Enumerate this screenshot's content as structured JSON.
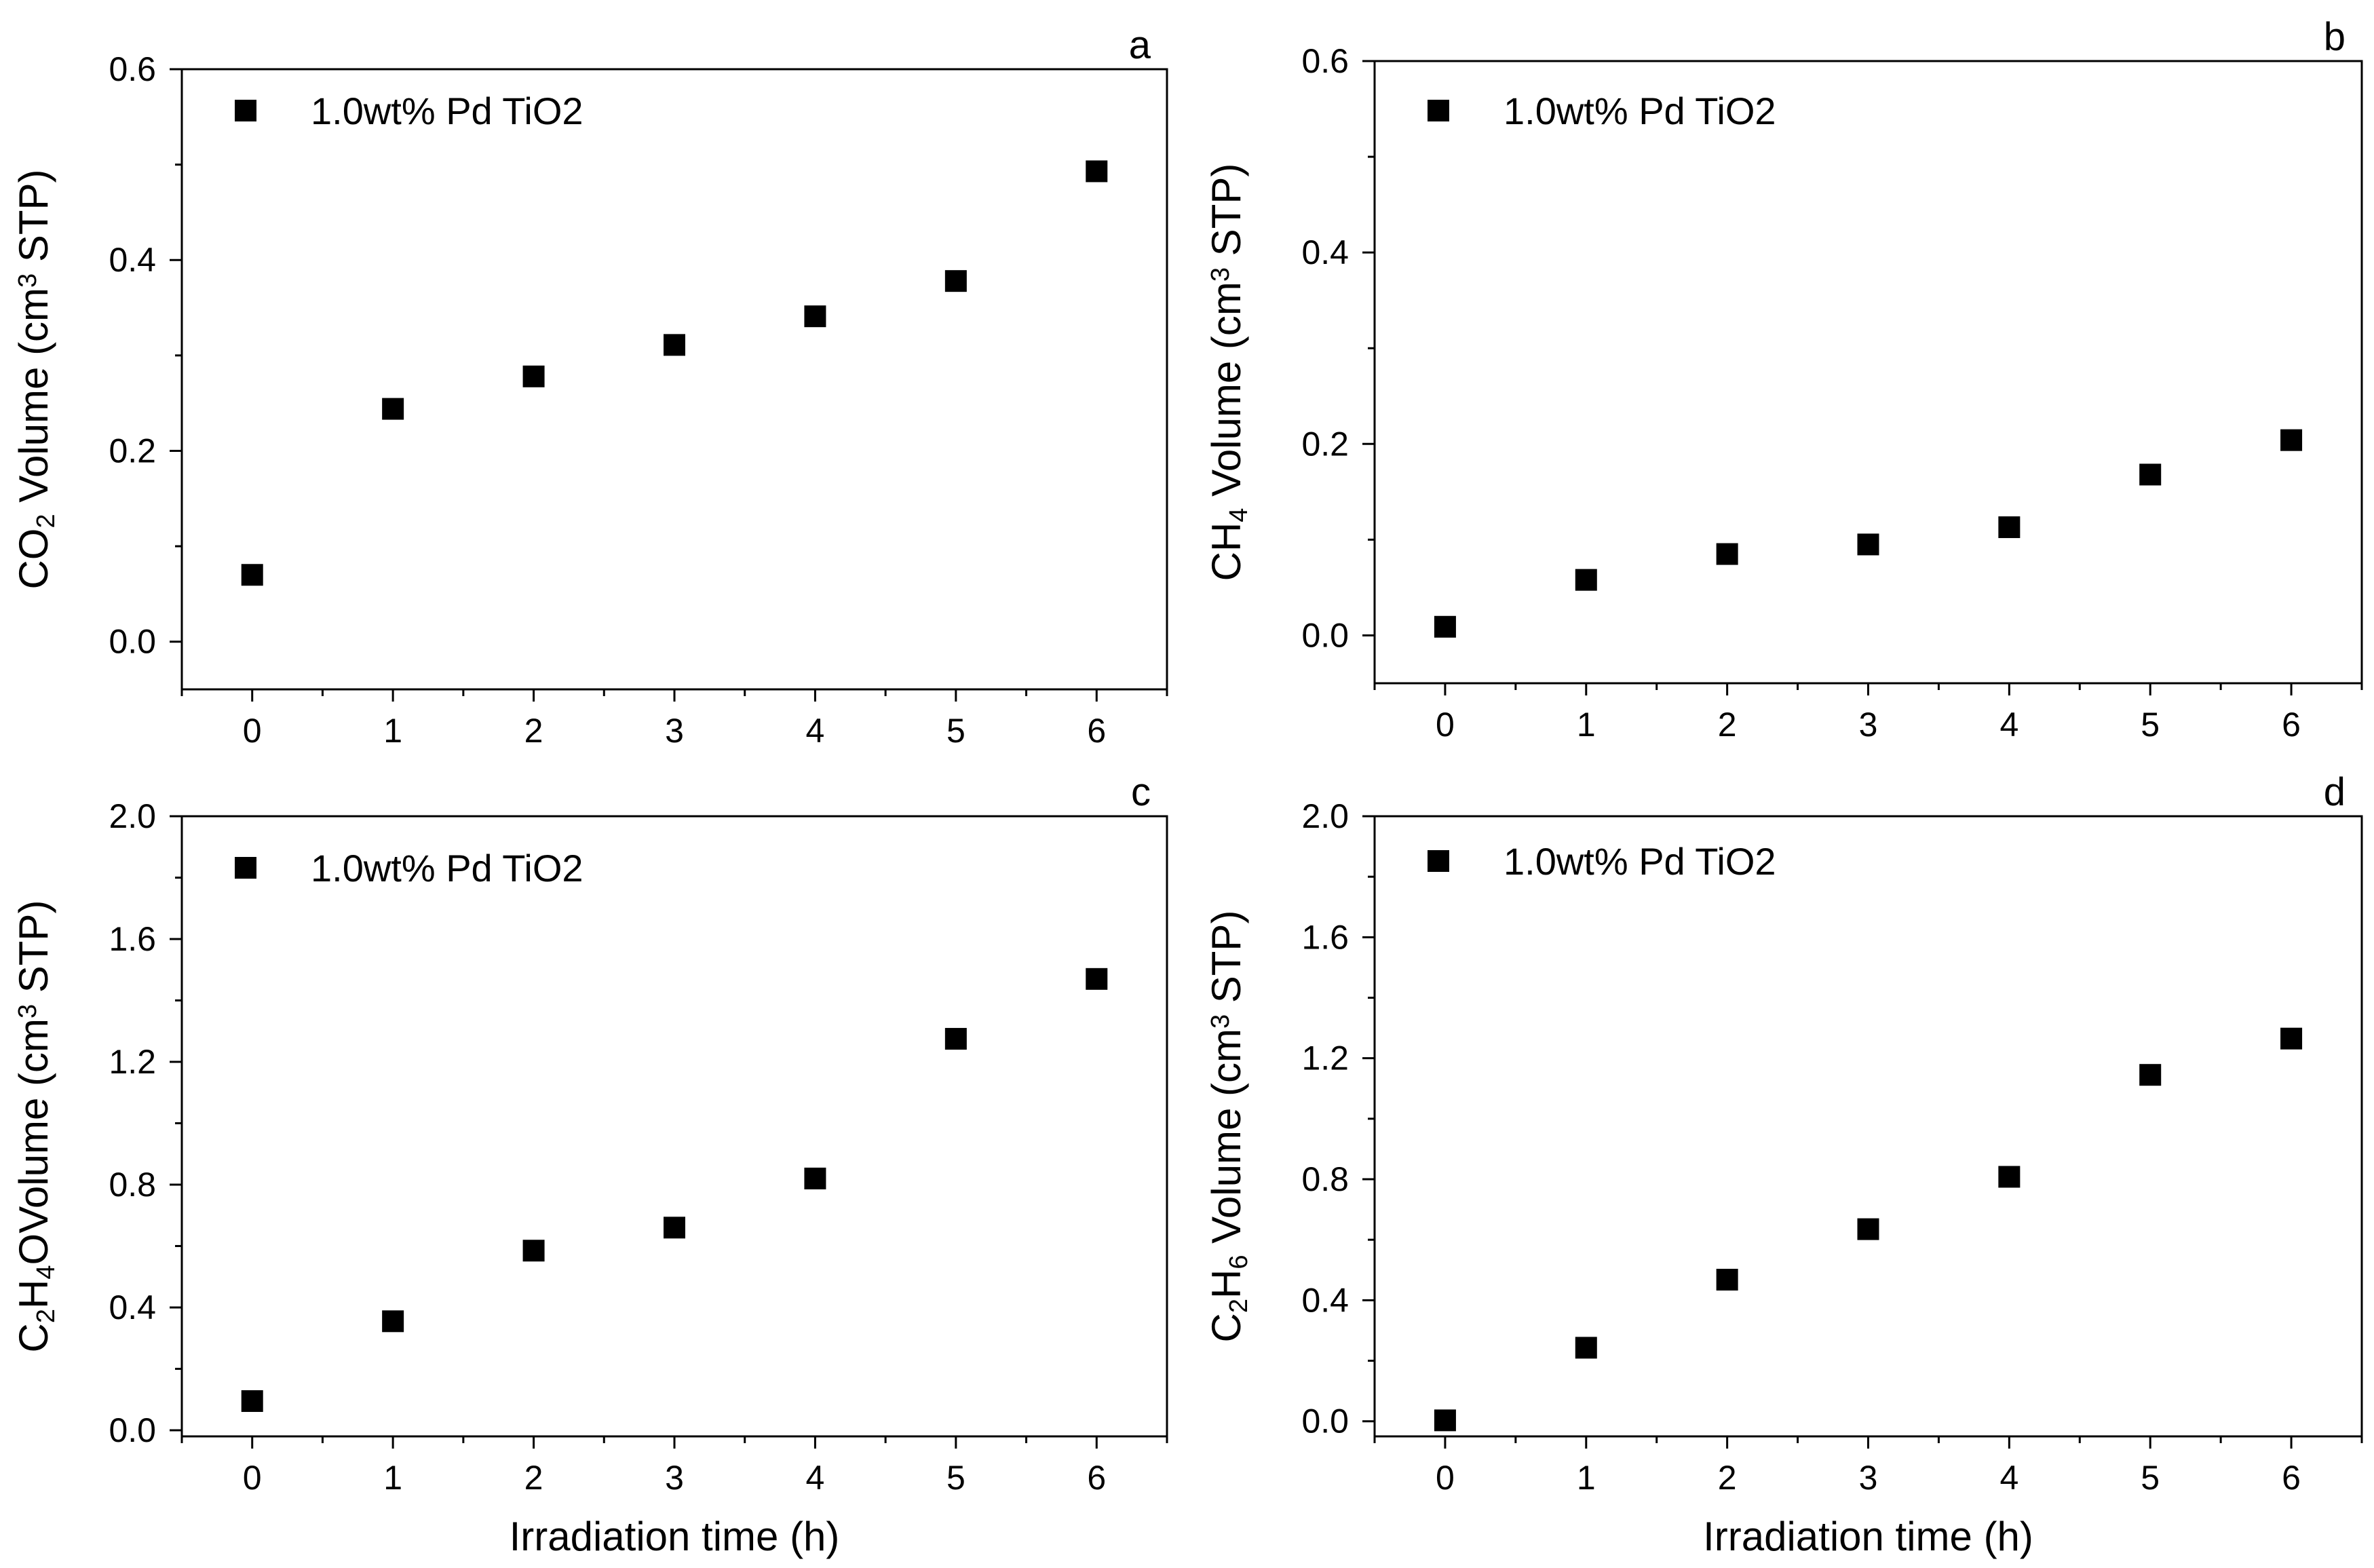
{
  "chart_data": [
    {
      "type": "scatter",
      "panel": "a",
      "ylabel_parts": [
        {
          "t": "CO"
        },
        {
          "t": "2",
          "sub": true
        },
        {
          "t": " Volume (cm"
        },
        {
          "t": "3",
          "sup": true
        },
        {
          "t": " STP)"
        }
      ],
      "xlabel": "",
      "xlim": [
        -0.5,
        6.5
      ],
      "ylim": [
        -0.05,
        0.6
      ],
      "xticks": [
        0,
        1,
        2,
        3,
        4,
        5,
        6
      ],
      "yticks": [
        "0.0",
        "0.2",
        "0.4",
        "0.6"
      ],
      "legend": "1.0wt% Pd TiO2",
      "series": [
        {
          "name": "1.0wt% Pd TiO2",
          "x": [
            0,
            1,
            2,
            3,
            4,
            5,
            6
          ],
          "y": [
            0.07,
            0.244,
            0.278,
            0.311,
            0.341,
            0.378,
            0.493
          ]
        }
      ]
    },
    {
      "type": "scatter",
      "panel": "b",
      "ylabel_parts": [
        {
          "t": "CH"
        },
        {
          "t": "4",
          "sub": true
        },
        {
          "t": " Volume (cm"
        },
        {
          "t": "3",
          "sup": true
        },
        {
          "t": " STP)"
        }
      ],
      "xlabel": "",
      "xlim": [
        -0.5,
        6.5
      ],
      "ylim": [
        -0.05,
        0.6
      ],
      "xticks": [
        0,
        1,
        2,
        3,
        4,
        5,
        6
      ],
      "yticks": [
        "0.0",
        "0.2",
        "0.4",
        "0.6"
      ],
      "legend": "1.0wt% Pd TiO2",
      "series": [
        {
          "name": "1.0wt% Pd TiO2",
          "x": [
            0,
            1,
            2,
            3,
            4,
            5,
            6
          ],
          "y": [
            0.009,
            0.058,
            0.085,
            0.095,
            0.113,
            0.168,
            0.204
          ]
        }
      ]
    },
    {
      "type": "scatter",
      "panel": "c",
      "ylabel_parts": [
        {
          "t": "C"
        },
        {
          "t": "2",
          "sub": true
        },
        {
          "t": "H"
        },
        {
          "t": "4",
          "sub": true
        },
        {
          "t": "OVolume (cm"
        },
        {
          "t": "3",
          "sup": true
        },
        {
          "t": " STP)"
        }
      ],
      "xlabel": "Irradiation time (h)",
      "xlim": [
        -0.5,
        6.5
      ],
      "ylim": [
        -0.02,
        2.0
      ],
      "xticks": [
        0,
        1,
        2,
        3,
        4,
        5,
        6
      ],
      "yticks": [
        "0.0",
        "0.4",
        "0.8",
        "1.2",
        "1.6",
        "2.0"
      ],
      "legend": "1.0wt% Pd TiO2",
      "series": [
        {
          "name": "1.0wt% Pd TiO2",
          "x": [
            0,
            1,
            2,
            3,
            4,
            5,
            6
          ],
          "y": [
            0.095,
            0.355,
            0.585,
            0.66,
            0.82,
            1.275,
            1.47
          ]
        }
      ]
    },
    {
      "type": "scatter",
      "panel": "d",
      "ylabel_parts": [
        {
          "t": "C"
        },
        {
          "t": "2",
          "sub": true
        },
        {
          "t": "H"
        },
        {
          "t": "6",
          "sub": true
        },
        {
          "t": " Volume (cm"
        },
        {
          "t": "3",
          "sup": true
        },
        {
          "t": " STP)"
        }
      ],
      "xlabel": "Irradiation time (h)",
      "xlim": [
        -0.5,
        6.5
      ],
      "ylim": [
        -0.05,
        2.0
      ],
      "xticks": [
        0,
        1,
        2,
        3,
        4,
        5,
        6
      ],
      "yticks": [
        "0.0",
        "0.4",
        "0.8",
        "1.2",
        "1.6",
        "2.0"
      ],
      "legend": "1.0wt% Pd TiO2",
      "series": [
        {
          "name": "1.0wt% Pd TiO2",
          "x": [
            0,
            1,
            2,
            3,
            4,
            5,
            6
          ],
          "y": [
            0.003,
            0.243,
            0.468,
            0.635,
            0.808,
            1.145,
            1.265
          ]
        }
      ]
    }
  ],
  "colors": {
    "marker": "#000000",
    "axis": "#000000",
    "background": "#ffffff"
  }
}
